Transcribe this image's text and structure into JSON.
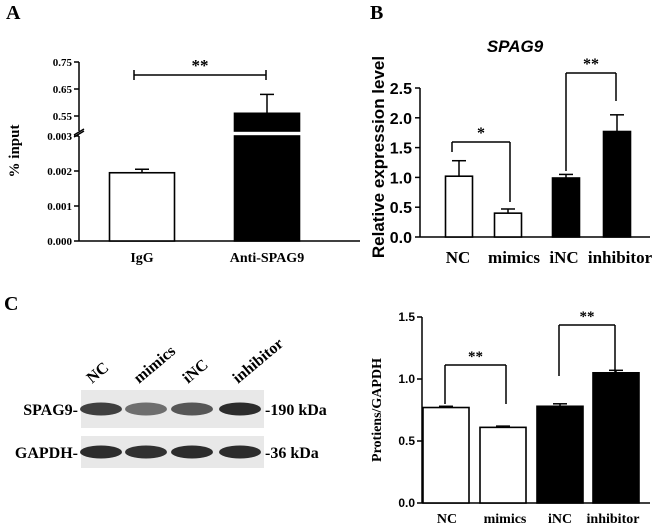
{
  "panel_labels": {
    "a": "A",
    "b": "B",
    "c": "C"
  },
  "colors": {
    "ink": "#000000",
    "open_bar": "#ffffff",
    "filled_bar": "#000000",
    "background": "#ffffff"
  },
  "chart_data": [
    {
      "id": "A",
      "type": "bar",
      "title": "",
      "ylabel": "% input",
      "xlabel": "",
      "categories": [
        "IgG",
        "Anti-SPAG9"
      ],
      "values": [
        0.00195,
        0.56
      ],
      "errors": [
        0.0001,
        0.07
      ],
      "bar_fill": [
        "open",
        "filled"
      ],
      "axis_break": {
        "lower_range": [
          0,
          0.003
        ],
        "upper_range": [
          0.5,
          0.75
        ]
      },
      "yticks_lower": [
        "0.000",
        "0.001",
        "0.002",
        "0.003"
      ],
      "yticks_upper": [
        "0.55",
        "0.65",
        "0.75"
      ],
      "significance": [
        {
          "between": [
            "IgG",
            "Anti-SPAG9"
          ],
          "label": "**"
        }
      ]
    },
    {
      "id": "B",
      "type": "bar",
      "title": "SPAG9",
      "ylabel": "Relative expression level",
      "xlabel": "",
      "categories": [
        "NC",
        "mimics",
        "iNC",
        "inhibitor"
      ],
      "values": [
        1.02,
        0.4,
        0.99,
        1.77
      ],
      "errors": [
        0.26,
        0.07,
        0.06,
        0.28
      ],
      "bar_fill": [
        "open",
        "open",
        "filled",
        "filled"
      ],
      "ylim": [
        0,
        2.5
      ],
      "yticks": [
        "0.0",
        "0.5",
        "1.0",
        "1.5",
        "2.0",
        "2.5"
      ],
      "significance": [
        {
          "between": [
            "NC",
            "mimics"
          ],
          "label": "*"
        },
        {
          "between": [
            "iNC",
            "inhibitor"
          ],
          "label": "**"
        }
      ]
    },
    {
      "id": "C",
      "type": "bar",
      "title": "",
      "ylabel": "Protiens/GAPDH",
      "xlabel": "",
      "categories": [
        "NC",
        "mimics",
        "iNC",
        "inhibitor"
      ],
      "values": [
        0.77,
        0.61,
        0.78,
        1.05
      ],
      "errors": [
        0.01,
        0.01,
        0.02,
        0.02
      ],
      "bar_fill": [
        "open",
        "open",
        "filled",
        "filled"
      ],
      "ylim": [
        0,
        1.5
      ],
      "yticks": [
        "0.0",
        "0.5",
        "1.0",
        "1.5"
      ],
      "significance": [
        {
          "between": [
            "NC",
            "mimics"
          ],
          "label": "**"
        },
        {
          "between": [
            "iNC",
            "inhibitor"
          ],
          "label": "**"
        }
      ]
    }
  ],
  "western_blot": {
    "lane_labels": [
      "NC",
      "mimics",
      "iNC",
      "inhibitor"
    ],
    "rows": [
      {
        "label": "SPAG9-",
        "size": "-190 kDa",
        "intensity": [
          0.82,
          0.62,
          0.72,
          0.9
        ]
      },
      {
        "label": "GAPDH-",
        "size": "-36 kDa",
        "intensity": [
          0.9,
          0.88,
          0.9,
          0.9
        ]
      }
    ]
  }
}
